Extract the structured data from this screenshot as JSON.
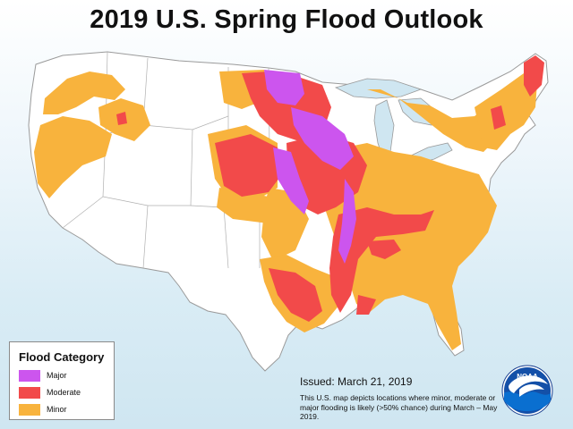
{
  "title": "2019 U.S. Spring Flood Outlook",
  "legend": {
    "title": "Flood Category",
    "items": [
      {
        "label": "Major",
        "color": "#cc55ee"
      },
      {
        "label": "Moderate",
        "color": "#f24a4a"
      },
      {
        "label": "Minor",
        "color": "#f8b33d"
      }
    ]
  },
  "issued": "Issued:  March 21, 2019",
  "note": "This U.S. map depicts locations where minor, moderate or major flooding is likely (>50% chance) during March – May 2019.",
  "logo": {
    "text": "NOAA",
    "icon": "noaa-logo"
  },
  "map_colors": {
    "land": "#ffffff",
    "water": "#cfe6f1",
    "borders": "#9a9a9a"
  }
}
